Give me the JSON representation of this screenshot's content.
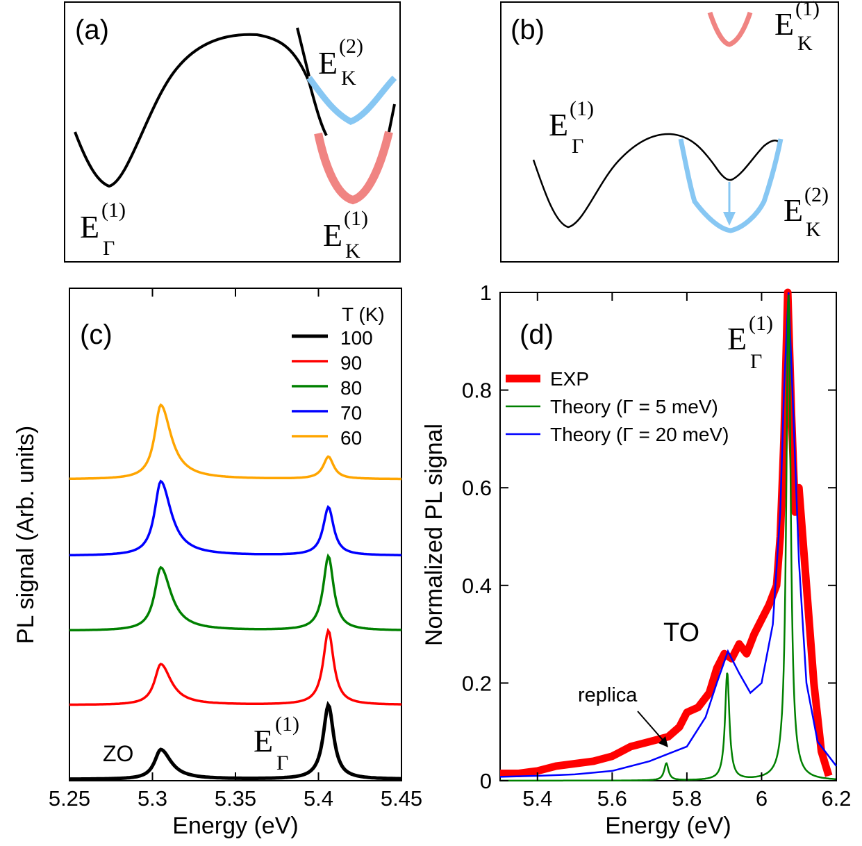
{
  "chart_data": [
    {
      "panel": "(a)",
      "type": "diagram",
      "labels": [
        {
          "base": "E",
          "sup": "(1)",
          "sub": "Γ"
        },
        {
          "base": "E",
          "sup": "(2)",
          "sub": "K"
        },
        {
          "base": "E",
          "sup": "(1)",
          "sub": "K"
        }
      ],
      "colors": {
        "line": "#000000",
        "K2": "#87c7f3",
        "K1": "#f08482"
      }
    },
    {
      "panel": "(b)",
      "type": "diagram",
      "labels": [
        {
          "base": "E",
          "sup": "(1)",
          "sub": "K"
        },
        {
          "base": "E",
          "sup": "(1)",
          "sub": "Γ"
        },
        {
          "base": "E",
          "sup": "(2)",
          "sub": "K"
        }
      ],
      "colors": {
        "line": "#000000",
        "K2": "#87c7f3",
        "K1": "#f08482"
      }
    },
    {
      "panel": "(c)",
      "type": "line",
      "xlabel": "Energy (eV)",
      "ylabel": "PL signal (Arb. units)",
      "xlim": [
        5.25,
        5.45
      ],
      "xticks": [
        "5.25",
        "5.3",
        "5.35",
        "5.4",
        "5.45"
      ],
      "legend_title": "T (K)",
      "annotations": [
        "ZO",
        {
          "base": "E",
          "sup": "(1)",
          "sub": "Γ"
        }
      ],
      "peak_positions_eV": [
        5.305,
        5.406
      ],
      "series": [
        {
          "name": "100",
          "color": "#000000",
          "offset": 0,
          "zo_peak": 0.4,
          "gamma_peak": 1.0
        },
        {
          "name": "90",
          "color": "#ff0000",
          "offset": 1,
          "zo_peak": 0.55,
          "gamma_peak": 1.0
        },
        {
          "name": "80",
          "color": "#008000",
          "offset": 2,
          "zo_peak": 0.85,
          "gamma_peak": 1.0
        },
        {
          "name": "70",
          "color": "#0000ff",
          "offset": 3,
          "zo_peak": 1.0,
          "gamma_peak": 0.65
        },
        {
          "name": "60",
          "color": "#ffa500",
          "offset": 4,
          "zo_peak": 1.0,
          "gamma_peak": 0.3
        }
      ]
    },
    {
      "panel": "(d)",
      "type": "line",
      "xlabel": "Energy (eV)",
      "ylabel": "Normalized PL signal",
      "xlim": [
        5.3,
        6.2
      ],
      "ylim": [
        0,
        1
      ],
      "xticks": [
        "5.4",
        "5.6",
        "5.8",
        "6",
        "6.2"
      ],
      "yticks": [
        "0",
        "0.2",
        "0.4",
        "0.6",
        "0.8",
        "1"
      ],
      "annotations": [
        "TO",
        "replica",
        {
          "base": "E",
          "sup": "(1)",
          "sub": "Γ"
        }
      ],
      "series": [
        {
          "name": "EXP",
          "color": "#ff0000",
          "x": [
            5.3,
            5.35,
            5.4,
            5.45,
            5.5,
            5.55,
            5.6,
            5.65,
            5.7,
            5.75,
            5.78,
            5.8,
            5.83,
            5.86,
            5.88,
            5.9,
            5.92,
            5.94,
            5.96,
            5.98,
            6.0,
            6.02,
            6.04,
            6.05,
            6.06,
            6.07,
            6.08,
            6.09,
            6.1,
            6.12,
            6.14,
            6.16,
            6.18
          ],
          "y": [
            0.015,
            0.015,
            0.02,
            0.03,
            0.035,
            0.04,
            0.05,
            0.07,
            0.08,
            0.09,
            0.11,
            0.14,
            0.15,
            0.18,
            0.23,
            0.26,
            0.25,
            0.28,
            0.26,
            0.3,
            0.33,
            0.36,
            0.4,
            0.5,
            0.7,
            1.0,
            0.75,
            0.55,
            0.6,
            0.4,
            0.2,
            0.06,
            0.01
          ]
        },
        {
          "name": "Theory (Γ = 5 meV)",
          "color": "#008000",
          "peaks": [
            {
              "x": 5.745,
              "y": 0.035
            },
            {
              "x": 5.908,
              "y": 0.22
            },
            {
              "x": 6.072,
              "y": 1.0
            }
          ]
        },
        {
          "name": "Theory (Γ = 20 meV)",
          "color": "#0000ff",
          "x": [
            5.3,
            5.4,
            5.5,
            5.6,
            5.7,
            5.75,
            5.8,
            5.85,
            5.88,
            5.91,
            5.94,
            5.97,
            6.0,
            6.03,
            6.05,
            6.06,
            6.072,
            6.085,
            6.1,
            6.12,
            6.15,
            6.2
          ],
          "y": [
            0.008,
            0.01,
            0.013,
            0.02,
            0.04,
            0.055,
            0.07,
            0.13,
            0.2,
            0.265,
            0.22,
            0.18,
            0.2,
            0.32,
            0.55,
            0.8,
            1.0,
            0.75,
            0.45,
            0.2,
            0.08,
            0.03
          ]
        }
      ]
    }
  ]
}
